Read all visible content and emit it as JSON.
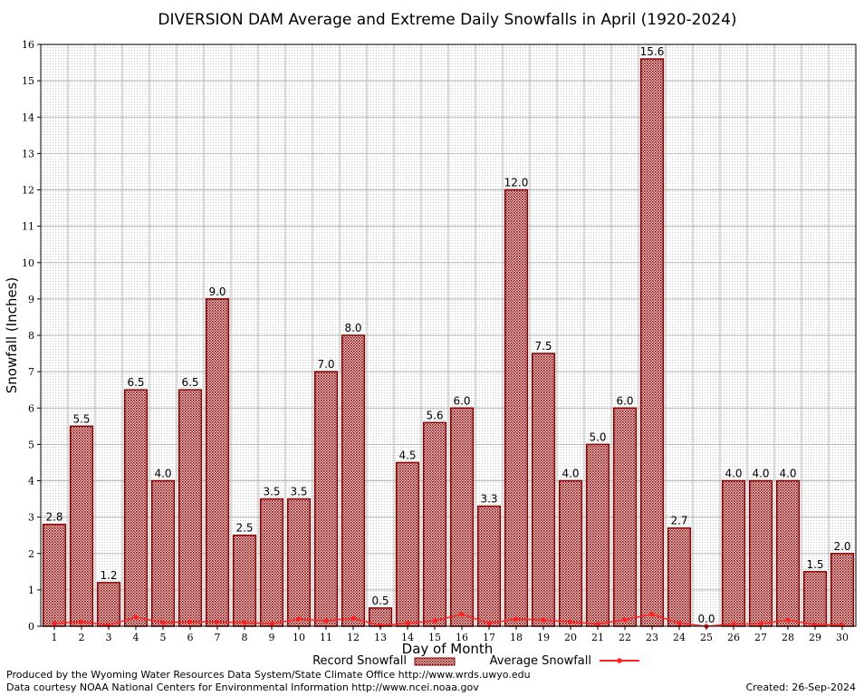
{
  "chart_data": {
    "type": "bar",
    "title": "DIVERSION DAM Average and Extreme Daily Snowfalls in April (1920-2024)",
    "xlabel": "Day of Month",
    "ylabel": "Snowfall (Inches)",
    "ylim": [
      0,
      16
    ],
    "yticks": [
      "0",
      "1",
      "2",
      "3",
      "4",
      "5",
      "6",
      "7",
      "8",
      "9",
      "10",
      "11",
      "12",
      "13",
      "14",
      "15",
      "16"
    ],
    "categories": [
      "1",
      "2",
      "3",
      "4",
      "5",
      "6",
      "7",
      "8",
      "9",
      "10",
      "11",
      "12",
      "13",
      "14",
      "15",
      "16",
      "17",
      "18",
      "19",
      "20",
      "21",
      "22",
      "23",
      "24",
      "25",
      "26",
      "27",
      "28",
      "29",
      "30"
    ],
    "grid": true,
    "legend_position": "bottom-center",
    "series": [
      {
        "name": "Record Snowfall",
        "kind": "bar",
        "color": "#8b0000",
        "values": [
          2.8,
          5.5,
          1.2,
          6.5,
          4.0,
          6.5,
          9.0,
          2.5,
          3.5,
          3.5,
          7.0,
          8.0,
          0.5,
          4.5,
          5.6,
          6.0,
          3.3,
          12.0,
          7.5,
          4.0,
          5.0,
          6.0,
          15.6,
          2.7,
          0.0,
          4.0,
          4.0,
          4.0,
          1.5,
          2.0
        ],
        "labels": [
          "2.8",
          "5.5",
          "1.2",
          "6.5",
          "4.0",
          "6.5",
          "9.0",
          "2.5",
          "3.5",
          "3.5",
          "7.0",
          "8.0",
          "0.5",
          "4.5",
          "5.6",
          "6.0",
          "3.3",
          "12.0",
          "7.5",
          "4.0",
          "5.0",
          "6.0",
          "15.6",
          "2.7",
          "0.0",
          "4.0",
          "4.0",
          "4.0",
          "1.5",
          "2.0"
        ]
      },
      {
        "name": "Average Snowfall",
        "kind": "line",
        "color": "#ff2020",
        "values": [
          0.08,
          0.12,
          0.03,
          0.25,
          0.1,
          0.12,
          0.12,
          0.1,
          0.07,
          0.2,
          0.15,
          0.22,
          0.02,
          0.08,
          0.15,
          0.33,
          0.08,
          0.2,
          0.17,
          0.12,
          0.06,
          0.18,
          0.33,
          0.08,
          0.0,
          0.06,
          0.07,
          0.17,
          0.04,
          0.04
        ]
      }
    ]
  },
  "footer": {
    "credit_line1": "Produced by the Wyoming Water Resources Data System/State Climate Office http://www.wrds.uwyo.edu",
    "credit_line2": "Data courtesy NOAA National Centers for Environmental Information http://www.ncei.noaa.gov",
    "created": "Created:  26-Sep-2024"
  }
}
